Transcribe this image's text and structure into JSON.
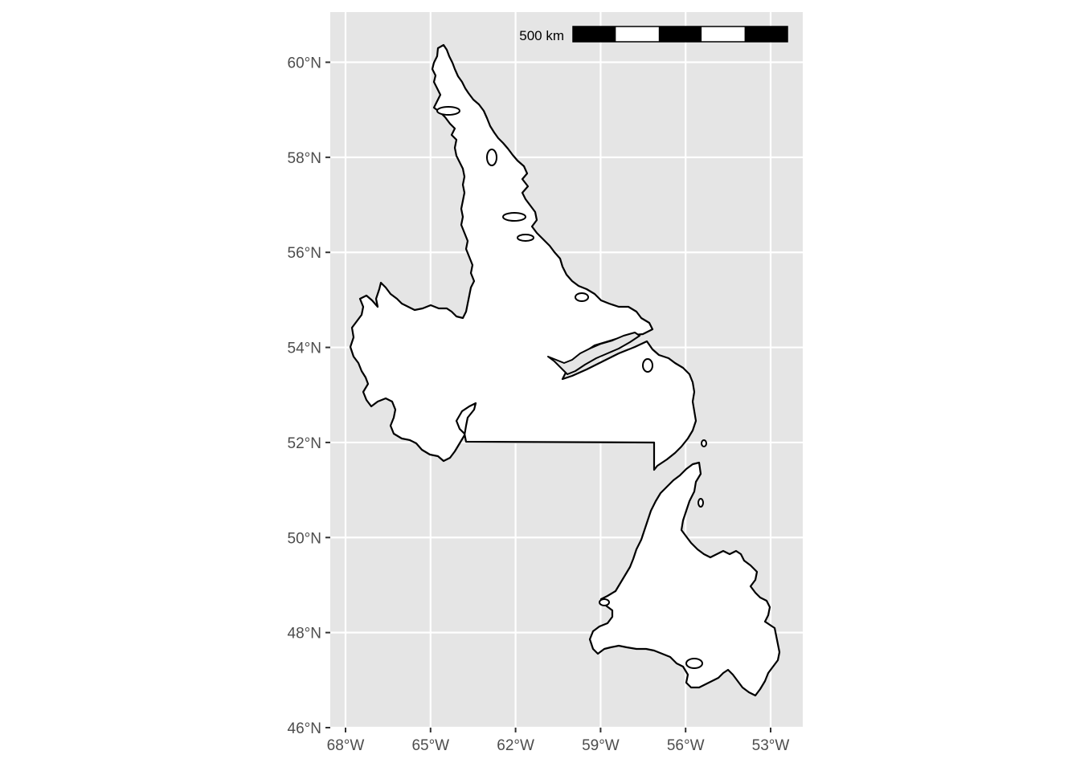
{
  "map": {
    "region": "Newfoundland and Labrador",
    "projection": "geographic",
    "background_color": "#e5e5e5",
    "grid_color": "#ffffff",
    "land_fill": "#ffffff",
    "outline_color": "#000000",
    "lon_range": [
      -68.0,
      -52.2
    ],
    "lat_range": [
      45.9,
      61.0
    ],
    "x_ticks": [
      {
        "value": -68,
        "label": "68°W"
      },
      {
        "value": -65,
        "label": "65°W"
      },
      {
        "value": -62,
        "label": "62°W"
      },
      {
        "value": -59,
        "label": "59°W"
      },
      {
        "value": -56,
        "label": "56°W"
      },
      {
        "value": -53,
        "label": "53°W"
      }
    ],
    "y_ticks": [
      {
        "value": 46,
        "label": "46°N"
      },
      {
        "value": 48,
        "label": "48°N"
      },
      {
        "value": 50,
        "label": "50°N"
      },
      {
        "value": 52,
        "label": "52°N"
      },
      {
        "value": 54,
        "label": "54°N"
      },
      {
        "value": 56,
        "label": "56°N"
      },
      {
        "value": 58,
        "label": "58°N"
      },
      {
        "value": 60,
        "label": "60°N"
      }
    ],
    "scale_bar": {
      "label": "500 km",
      "segments": 5,
      "colors": [
        "#000000",
        "#ffffff"
      ],
      "position": "top-right"
    }
  }
}
